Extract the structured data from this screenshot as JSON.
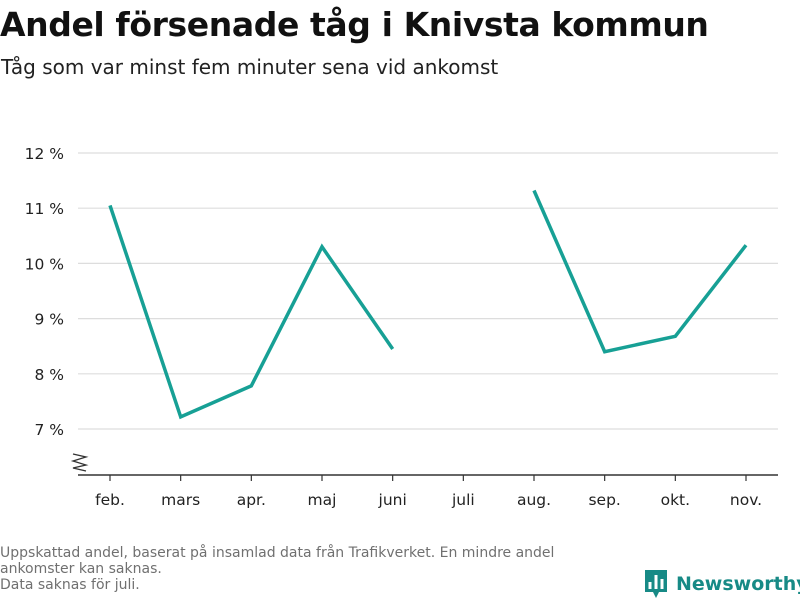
{
  "header": {
    "title": "Andel försenade tåg i Knivsta kommun",
    "subtitle": "Tåg som var minst fem minuter sena vid ankomst"
  },
  "chart_data": {
    "type": "line",
    "categories": [
      "feb.",
      "mars",
      "apr.",
      "maj",
      "juni",
      "juli",
      "aug.",
      "sep.",
      "okt.",
      "nov."
    ],
    "series": [
      {
        "values": [
          11.05,
          7.22,
          7.78,
          10.3,
          8.45,
          null,
          11.32,
          8.4,
          8.68,
          10.33
        ]
      }
    ],
    "y_ticks": [
      7,
      8,
      9,
      10,
      11,
      12
    ],
    "y_tick_labels": [
      "7 %",
      "8 %",
      "9 %",
      "10 %",
      "11 %",
      "12 %"
    ],
    "ylim": [
      6.15,
      12
    ],
    "y_axis_break": true,
    "grid": "horizontal",
    "line_color": "#17a095",
    "grid_color": "#dddddd"
  },
  "footnote": {
    "line1": "Uppskattad andel, baserat på insamlad data från Trafikverket. En mindre andel",
    "line2": "ankomster kan saknas.",
    "line3": "Data saknas för juli."
  },
  "brand": {
    "name": "Newsworthy",
    "logo_icon": "bar-chart-logo-icon",
    "color": "#178a86"
  }
}
